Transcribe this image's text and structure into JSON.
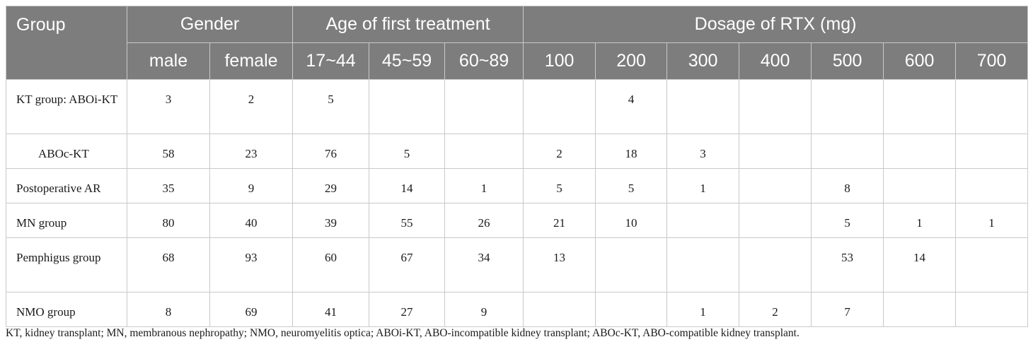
{
  "header": {
    "group": "Group",
    "gender": "Gender",
    "age": "Age of first treatment",
    "dosage": "Dosage of RTX (mg)",
    "sub": [
      "male",
      "female",
      "17~44",
      "45~59",
      "60~89",
      "100",
      "200",
      "300",
      "400",
      "500",
      "600",
      "700"
    ]
  },
  "rows": [
    {
      "label": "KT group: ABOi-KT",
      "cells": [
        "3",
        "2",
        "5",
        "",
        "",
        "",
        "4",
        "",
        "",
        "",
        "",
        ""
      ]
    },
    {
      "label": "ABOc-KT",
      "cells": [
        "58",
        "23",
        "76",
        "5",
        "",
        "2",
        "18",
        "3",
        "",
        "",
        "",
        ""
      ]
    },
    {
      "label": "Postoperative AR",
      "cells": [
        "35",
        "9",
        "29",
        "14",
        "1",
        "5",
        "5",
        "1",
        "",
        "8",
        "",
        ""
      ]
    },
    {
      "label": "MN group",
      "cells": [
        "80",
        "40",
        "39",
        "55",
        "26",
        "21",
        "10",
        "",
        "",
        "5",
        "1",
        "1"
      ]
    },
    {
      "label": "Pemphigus group",
      "cells": [
        "68",
        "93",
        "60",
        "67",
        "34",
        "13",
        "",
        "",
        "",
        "53",
        "14",
        ""
      ]
    },
    {
      "label": "NMO group",
      "cells": [
        "8",
        "69",
        "41",
        "27",
        "9",
        "",
        "",
        "1",
        "2",
        "7",
        "",
        ""
      ]
    }
  ],
  "footnote": "KT, kidney transplant; MN, membranous nephropathy; NMO, neuromyelitis optica; ABOi-KT, ABO-incompatible kidney transplant; ABOc-KT, ABO-compatible kidney transplant."
}
